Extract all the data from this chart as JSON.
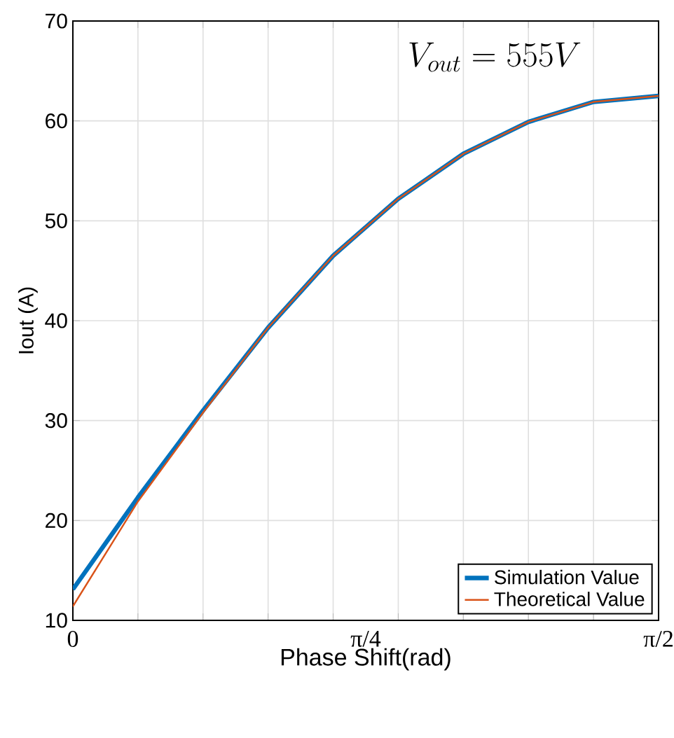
{
  "chart_data": {
    "type": "line",
    "xlabel": "Phase Shift(rad)",
    "ylabel": "Iout (A)",
    "annotations": [
      "V_{out} = 555V"
    ],
    "x": [
      0,
      0.1745,
      0.3491,
      0.5236,
      0.6981,
      0.8727,
      1.0472,
      1.2217,
      1.3963,
      1.5708
    ],
    "series": [
      {
        "name": "Simulation Value",
        "color": "#0072bd",
        "values": [
          13.1,
          22.3,
          31.0,
          39.3,
          46.5,
          52.2,
          56.7,
          59.9,
          61.9,
          62.5
        ]
      },
      {
        "name": "Theoretical Value",
        "color": "#d95319",
        "values": [
          11.4,
          21.9,
          30.8,
          39.3,
          46.5,
          52.2,
          56.7,
          59.9,
          61.9,
          62.5
        ]
      }
    ],
    "xlim": [
      0,
      1.5708
    ],
    "xticks": [
      {
        "value": 0,
        "label": "0"
      },
      {
        "value": 0.1745,
        "label": null
      },
      {
        "value": 0.3491,
        "label": null
      },
      {
        "value": 0.5236,
        "label": null
      },
      {
        "value": 0.6981,
        "label": null
      },
      {
        "value": 0.7854,
        "label": "π/4"
      },
      {
        "value": 0.8727,
        "label": null
      },
      {
        "value": 1.0472,
        "label": null
      },
      {
        "value": 1.2217,
        "label": null
      },
      {
        "value": 1.3963,
        "label": null
      },
      {
        "value": 1.5708,
        "label": "π/2"
      }
    ],
    "ylim": [
      10,
      70
    ],
    "yticks": [
      10,
      20,
      30,
      40,
      50,
      60,
      70
    ],
    "grid": true,
    "legend": "bottom right",
    "marker": "none",
    "line_style": "solid"
  }
}
